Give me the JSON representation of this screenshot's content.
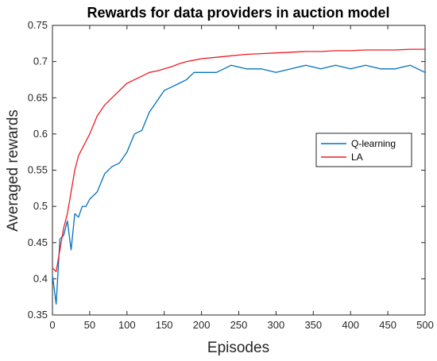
{
  "chart_data": {
    "type": "line",
    "title": "Rewards for data providers in auction model",
    "xlabel": "Episodes",
    "ylabel": "Averaged rewards",
    "xlim": [
      0,
      500
    ],
    "ylim": [
      0.35,
      0.75
    ],
    "xticks": [
      "0",
      "50",
      "100",
      "150",
      "200",
      "250",
      "300",
      "350",
      "400",
      "450",
      "500"
    ],
    "yticks": [
      "0.35",
      "0.4",
      "0.45",
      "0.5",
      "0.55",
      "0.6",
      "0.65",
      "0.7",
      "0.75"
    ],
    "grid": false,
    "legend_position": "right",
    "series": [
      {
        "name": "Q-learning",
        "color": "#0072BD",
        "x": [
          0,
          5,
          10,
          15,
          20,
          25,
          30,
          35,
          40,
          45,
          50,
          60,
          70,
          80,
          90,
          100,
          110,
          120,
          130,
          140,
          150,
          160,
          170,
          180,
          190,
          200,
          220,
          240,
          260,
          280,
          300,
          320,
          340,
          360,
          380,
          400,
          420,
          440,
          460,
          480,
          500
        ],
        "y": [
          0.405,
          0.365,
          0.455,
          0.46,
          0.48,
          0.44,
          0.49,
          0.485,
          0.5,
          0.5,
          0.51,
          0.52,
          0.545,
          0.555,
          0.56,
          0.575,
          0.6,
          0.605,
          0.63,
          0.645,
          0.66,
          0.665,
          0.67,
          0.675,
          0.685,
          0.685,
          0.685,
          0.695,
          0.69,
          0.69,
          0.685,
          0.69,
          0.695,
          0.69,
          0.695,
          0.69,
          0.695,
          0.69,
          0.69,
          0.695,
          0.685
        ]
      },
      {
        "name": "LA",
        "color": "#ED1C24",
        "x": [
          0,
          5,
          10,
          15,
          20,
          25,
          30,
          35,
          40,
          45,
          50,
          60,
          70,
          80,
          90,
          100,
          110,
          120,
          130,
          140,
          150,
          160,
          170,
          180,
          190,
          200,
          220,
          240,
          260,
          280,
          300,
          320,
          340,
          360,
          380,
          400,
          420,
          440,
          460,
          480,
          500
        ],
        "y": [
          0.415,
          0.41,
          0.44,
          0.47,
          0.49,
          0.52,
          0.55,
          0.57,
          0.58,
          0.59,
          0.6,
          0.625,
          0.64,
          0.65,
          0.66,
          0.67,
          0.675,
          0.68,
          0.685,
          0.687,
          0.69,
          0.693,
          0.697,
          0.7,
          0.702,
          0.704,
          0.706,
          0.708,
          0.71,
          0.711,
          0.712,
          0.713,
          0.714,
          0.714,
          0.715,
          0.715,
          0.716,
          0.716,
          0.716,
          0.717,
          0.717
        ]
      }
    ]
  }
}
